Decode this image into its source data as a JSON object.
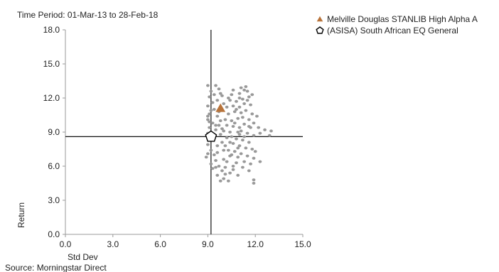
{
  "header": {
    "period": "Time Period: 01-Mar-13 to 28-Feb-18"
  },
  "footer": {
    "source": "Source: Morningstar Direct"
  },
  "chart_data": {
    "type": "scatter",
    "xlabel": "Std Dev",
    "ylabel": "Return",
    "xlim": [
      0,
      15
    ],
    "ylim": [
      0,
      18
    ],
    "x_ticks": [
      "0.0",
      "3.0",
      "6.0",
      "9.0",
      "12.0",
      "15.0"
    ],
    "y_ticks": [
      "0.0",
      "3.0",
      "6.0",
      "9.0",
      "12.0",
      "15.0",
      "18.0"
    ],
    "grid": false,
    "legend_position": "top-right",
    "crosshair": {
      "x": 9.2,
      "y": 8.6
    },
    "series": [
      {
        "name": "Melville Douglas STANLIB High Alpha A",
        "marker": "triangle",
        "color": "#b8733a",
        "points": [
          [
            9.8,
            11.1
          ]
        ]
      },
      {
        "name": "(ASISA) South African EQ General",
        "marker": "pentagon",
        "color": "#000000",
        "points": [
          [
            9.2,
            8.6
          ]
        ]
      },
      {
        "name": "",
        "marker": "dot",
        "color": "#999999",
        "points": [
          [
            9.0,
            13.1
          ],
          [
            9.5,
            13.1
          ],
          [
            9.2,
            12.6
          ],
          [
            9.7,
            12.8
          ],
          [
            9.1,
            12.1
          ],
          [
            9.4,
            12.3
          ],
          [
            9.9,
            12.2
          ],
          [
            9.3,
            11.6
          ],
          [
            9.6,
            11.8
          ],
          [
            9.0,
            11.3
          ],
          [
            9.4,
            11.0
          ],
          [
            9.1,
            10.6
          ],
          [
            9.6,
            10.4
          ],
          [
            9.0,
            10.1
          ],
          [
            9.3,
            9.8
          ],
          [
            9.7,
            9.6
          ],
          [
            9.1,
            9.4
          ],
          [
            9.5,
            9.2
          ],
          [
            9.0,
            8.9
          ],
          [
            9.8,
            8.8
          ],
          [
            9.3,
            8.3
          ],
          [
            9.0,
            7.9
          ],
          [
            9.6,
            7.8
          ],
          [
            9.2,
            7.4
          ],
          [
            9.0,
            7.1
          ],
          [
            9.4,
            7.0
          ],
          [
            8.9,
            6.8
          ],
          [
            9.5,
            6.5
          ],
          [
            9.2,
            6.2
          ],
          [
            9.7,
            6.0
          ],
          [
            9.3,
            5.8
          ],
          [
            9.9,
            5.6
          ],
          [
            9.6,
            5.2
          ],
          [
            10.0,
            4.9
          ],
          [
            9.8,
            4.7
          ],
          [
            10.3,
            4.7
          ],
          [
            10.4,
            5.4
          ],
          [
            10.1,
            5.9
          ],
          [
            10.6,
            5.7
          ],
          [
            10.2,
            6.4
          ],
          [
            10.8,
            6.3
          ],
          [
            10.4,
            6.9
          ],
          [
            10.9,
            6.8
          ],
          [
            10.3,
            7.4
          ],
          [
            10.7,
            7.3
          ],
          [
            10.1,
            7.8
          ],
          [
            10.6,
            8.0
          ],
          [
            10.9,
            7.6
          ],
          [
            10.2,
            8.5
          ],
          [
            10.5,
            8.6
          ],
          [
            10.8,
            8.4
          ],
          [
            10.0,
            9.1
          ],
          [
            10.4,
            9.0
          ],
          [
            10.9,
            9.0
          ],
          [
            10.2,
            9.6
          ],
          [
            10.6,
            9.5
          ],
          [
            11.0,
            9.4
          ],
          [
            10.1,
            10.1
          ],
          [
            10.5,
            10.0
          ],
          [
            10.9,
            10.2
          ],
          [
            10.3,
            10.6
          ],
          [
            10.7,
            10.8
          ],
          [
            11.1,
            10.7
          ],
          [
            10.2,
            11.2
          ],
          [
            10.6,
            11.3
          ],
          [
            11.0,
            11.2
          ],
          [
            10.4,
            11.8
          ],
          [
            10.8,
            11.7
          ],
          [
            11.2,
            11.9
          ],
          [
            10.5,
            12.3
          ],
          [
            11.0,
            12.4
          ],
          [
            11.3,
            12.7
          ],
          [
            11.1,
            12.9
          ],
          [
            11.4,
            13.0
          ],
          [
            11.5,
            12.6
          ],
          [
            11.6,
            12.1
          ],
          [
            11.3,
            11.5
          ],
          [
            11.7,
            11.4
          ],
          [
            11.4,
            10.9
          ],
          [
            11.8,
            10.6
          ],
          [
            11.2,
            10.3
          ],
          [
            11.6,
            10.1
          ],
          [
            11.9,
            9.8
          ],
          [
            11.3,
            9.7
          ],
          [
            11.7,
            9.4
          ],
          [
            11.1,
            9.1
          ],
          [
            11.5,
            8.9
          ],
          [
            11.9,
            8.7
          ],
          [
            11.2,
            8.3
          ],
          [
            11.6,
            8.1
          ],
          [
            11.0,
            7.8
          ],
          [
            11.4,
            7.6
          ],
          [
            11.8,
            7.5
          ],
          [
            11.1,
            7.1
          ],
          [
            11.5,
            6.9
          ],
          [
            11.9,
            6.7
          ],
          [
            11.3,
            6.4
          ],
          [
            11.7,
            6.2
          ],
          [
            11.6,
            5.6
          ],
          [
            11.9,
            4.8
          ],
          [
            11.9,
            4.5
          ],
          [
            12.3,
            6.4
          ],
          [
            12.2,
            9.4
          ],
          [
            12.6,
            9.2
          ],
          [
            13.0,
            9.1
          ],
          [
            12.9,
            8.7
          ],
          [
            12.3,
            8.9
          ],
          [
            12.1,
            10.4
          ],
          [
            11.8,
            12.3
          ],
          [
            10.6,
            12.7
          ],
          [
            9.8,
            12.4
          ],
          [
            10.0,
            11.5
          ],
          [
            9.2,
            10.9
          ],
          [
            9.8,
            10.0
          ],
          [
            9.5,
            9.6
          ],
          [
            9.9,
            8.1
          ],
          [
            9.6,
            7.2
          ],
          [
            10.0,
            6.6
          ],
          [
            9.5,
            5.9
          ],
          [
            10.1,
            5.3
          ],
          [
            10.7,
            9.8
          ],
          [
            11.0,
            8.8
          ],
          [
            10.8,
            11.0
          ],
          [
            11.5,
            11.8
          ],
          [
            10.4,
            8.1
          ],
          [
            10.0,
            7.4
          ],
          [
            9.4,
            8.7
          ],
          [
            9.7,
            10.8
          ],
          [
            10.3,
            12.0
          ],
          [
            11.6,
            9.5
          ],
          [
            10.6,
            6.0
          ],
          [
            10.9,
            5.2
          ],
          [
            11.2,
            5.9
          ],
          [
            12.0,
            7.3
          ],
          [
            9.1,
            9.9
          ],
          [
            9.0,
            10.4
          ],
          [
            9.9,
            9.3
          ],
          [
            10.5,
            7.0
          ],
          [
            11.3,
            8.6
          ],
          [
            11.0,
            12.0
          ]
        ]
      }
    ]
  }
}
